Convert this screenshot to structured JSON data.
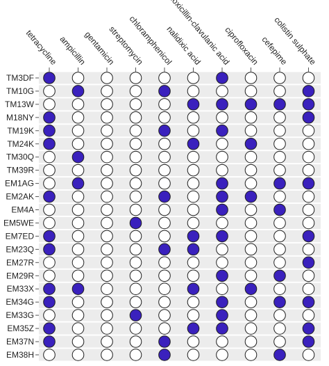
{
  "chart_data": {
    "type": "heatmap",
    "columns": [
      "tetracycline",
      "ampicillin",
      "gentamicin",
      "streptomycin",
      "chloramphenicol",
      "nalidixic acid",
      "amoxicillin-clavulanic acid",
      "ciprofloxacin",
      "cefepime",
      "colistin sulphate"
    ],
    "rows": [
      "TM3DF",
      "TM10G",
      "TM13W",
      "M18NY",
      "TM19K",
      "TM24K",
      "TM30Q",
      "TM39R",
      "EM1AG",
      "EM2AK",
      "EM4A",
      "EM5WE",
      "EM7ED",
      "EM23Q",
      "EM27R",
      "EM29R",
      "EM33X",
      "EM34G",
      "EM33G",
      "EM35Z",
      "EM37N",
      "EM38H"
    ],
    "matrix": [
      [
        1,
        0,
        0,
        0,
        0,
        0,
        1,
        0,
        0,
        0
      ],
      [
        0,
        1,
        0,
        0,
        1,
        0,
        0,
        0,
        0,
        1
      ],
      [
        0,
        0,
        0,
        0,
        0,
        1,
        1,
        1,
        1,
        1
      ],
      [
        1,
        0,
        0,
        0,
        0,
        0,
        0,
        0,
        0,
        1
      ],
      [
        1,
        0,
        0,
        0,
        1,
        0,
        1,
        0,
        0,
        0
      ],
      [
        1,
        0,
        0,
        0,
        0,
        1,
        0,
        1,
        0,
        0
      ],
      [
        0,
        1,
        0,
        0,
        0,
        0,
        0,
        0,
        0,
        0
      ],
      [
        0,
        0,
        0,
        0,
        0,
        0,
        0,
        0,
        0,
        0
      ],
      [
        0,
        1,
        0,
        0,
        0,
        0,
        1,
        0,
        1,
        1
      ],
      [
        1,
        0,
        0,
        0,
        1,
        0,
        1,
        1,
        0,
        0
      ],
      [
        0,
        0,
        0,
        0,
        0,
        0,
        1,
        0,
        1,
        0
      ],
      [
        0,
        0,
        0,
        1,
        0,
        0,
        0,
        0,
        0,
        0
      ],
      [
        1,
        0,
        0,
        0,
        0,
        1,
        1,
        0,
        0,
        1
      ],
      [
        1,
        0,
        0,
        0,
        1,
        1,
        0,
        0,
        0,
        0
      ],
      [
        0,
        0,
        0,
        0,
        0,
        0,
        0,
        0,
        0,
        1
      ],
      [
        0,
        0,
        0,
        0,
        0,
        0,
        1,
        0,
        1,
        0
      ],
      [
        1,
        1,
        0,
        0,
        0,
        1,
        0,
        1,
        0,
        0
      ],
      [
        1,
        0,
        0,
        0,
        0,
        0,
        1,
        0,
        1,
        1
      ],
      [
        0,
        0,
        0,
        1,
        0,
        0,
        1,
        0,
        0,
        0
      ],
      [
        1,
        0,
        0,
        0,
        0,
        1,
        1,
        0,
        0,
        1
      ],
      [
        1,
        0,
        0,
        0,
        1,
        0,
        0,
        0,
        0,
        1
      ],
      [
        0,
        0,
        0,
        0,
        1,
        0,
        0,
        0,
        1,
        0
      ]
    ],
    "legend": "none",
    "grid": false,
    "colors": {
      "filled": "#3a21bd",
      "empty": "#ffffff",
      "outline": "#1e1e1e",
      "band": "#ececec",
      "text": "#222222"
    }
  }
}
